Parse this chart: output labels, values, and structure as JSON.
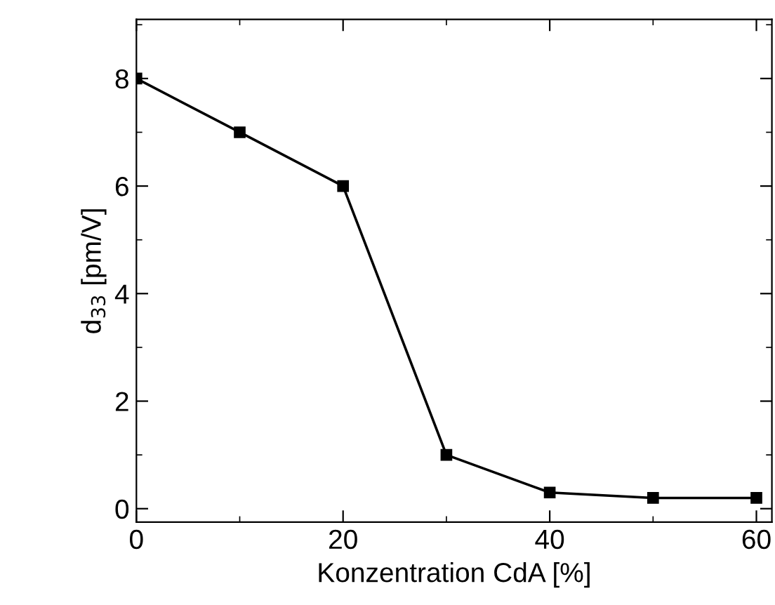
{
  "chart_data": {
    "type": "line",
    "xlabel": "Konzentration CdA [%]",
    "ylabel": "d$_{33}$ [pm/V]",
    "x": [
      0,
      10,
      20,
      30,
      40,
      50,
      60
    ],
    "series": [
      {
        "color": "#000000",
        "values": [
          8,
          7,
          6,
          1,
          0.3,
          0.2,
          0.2
        ]
      }
    ],
    "xlim": [
      0,
      61.5
    ],
    "ylim": [
      -0.25,
      9.1
    ],
    "xticks": [
      0,
      20,
      40,
      60
    ],
    "yticks": [
      0,
      2,
      4,
      6,
      8
    ],
    "marker": "square",
    "line_style": "solid",
    "grid": false,
    "legend": false
  }
}
